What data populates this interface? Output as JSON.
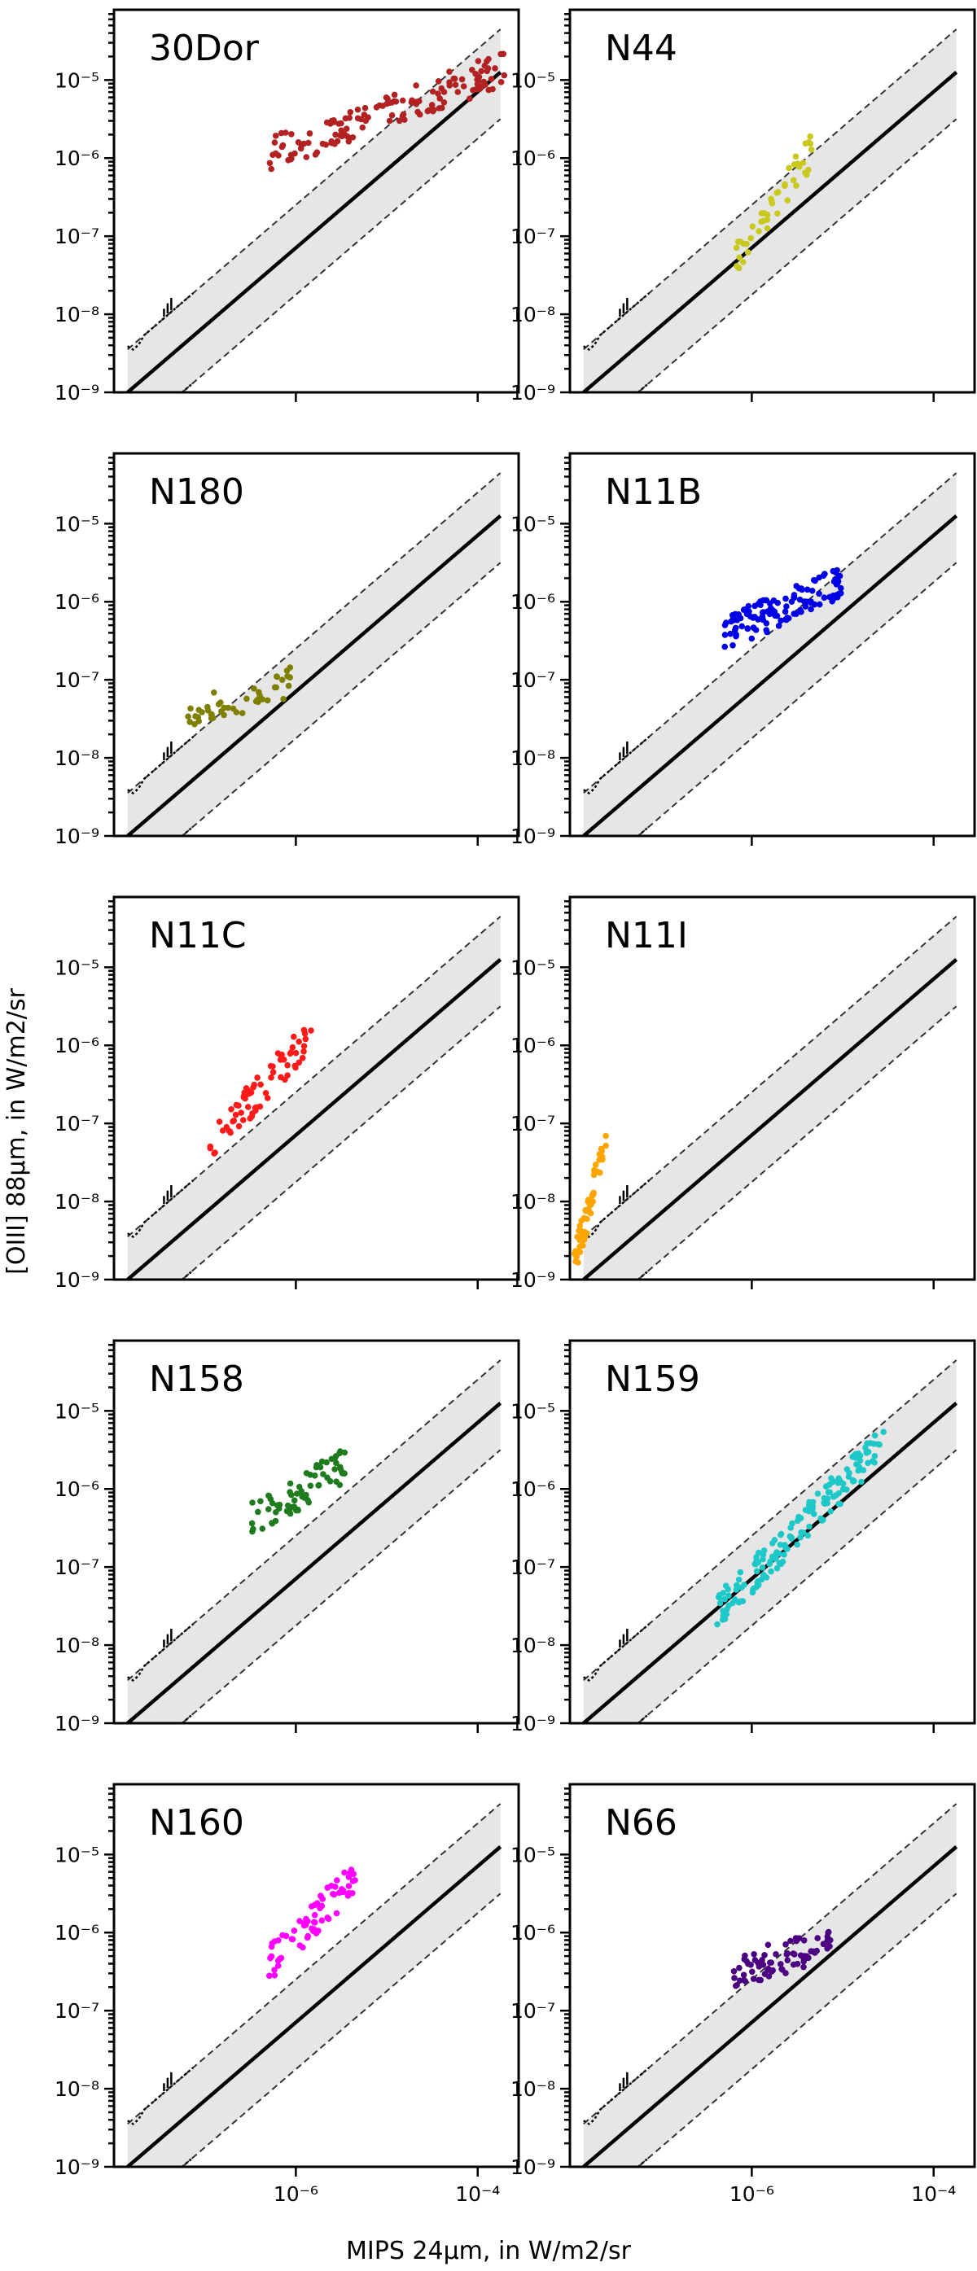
{
  "figure": {
    "xlabel": "MIPS 24μm, in W/m2/sr",
    "ylabel": "[OIII] 88μm, in W/m2/sr",
    "y_tick_labels": [
      "10⁻⁹",
      "10⁻⁸",
      "10⁻⁷",
      "10⁻⁶",
      "10⁻⁵"
    ],
    "x_tick_labels": [
      "10⁻⁶",
      "10⁻⁴"
    ]
  },
  "chart_data": [
    {
      "type": "scatter",
      "title": "30Dor",
      "color": "#b22222",
      "x_log_range": [
        -6.3,
        -3.7
      ],
      "y_log_range": [
        -5.95,
        -4.85
      ],
      "xlim": [
        1e-08,
        0.0003
      ],
      "ylim": [
        1e-09,
        8e-05
      ],
      "xscale": "log",
      "yscale": "log",
      "fit": "y = 0.07·x (approx.)",
      "n_points": 140
    },
    {
      "type": "scatter",
      "title": "N44",
      "color": "#c8c81e",
      "x_log_range": [
        -6.2,
        -5.3
      ],
      "y_log_range": [
        -7.3,
        -5.85
      ],
      "xlim": [
        1e-08,
        0.0003
      ],
      "ylim": [
        1e-09,
        8e-05
      ],
      "xscale": "log",
      "yscale": "log",
      "n_points": 45
    },
    {
      "type": "scatter",
      "title": "N180",
      "color": "#808000",
      "x_log_range": [
        -7.2,
        -6.05
      ],
      "y_log_range": [
        -7.5,
        -7.0
      ],
      "xlim": [
        1e-08,
        0.0003
      ],
      "ylim": [
        1e-09,
        8e-05
      ],
      "xscale": "log",
      "yscale": "log",
      "n_points": 45
    },
    {
      "type": "scatter",
      "title": "N11B",
      "color": "#0000e6",
      "x_log_range": [
        -6.3,
        -5.0
      ],
      "y_log_range": [
        -6.4,
        -5.75
      ],
      "xlim": [
        1e-08,
        0.0003
      ],
      "ylim": [
        1e-09,
        8e-05
      ],
      "xscale": "log",
      "yscale": "log",
      "n_points": 120
    },
    {
      "type": "scatter",
      "title": "N11C",
      "color": "#ff1a1a",
      "x_log_range": [
        -6.95,
        -5.8
      ],
      "y_log_range": [
        -7.3,
        -5.8
      ],
      "xlim": [
        1e-08,
        0.0003
      ],
      "ylim": [
        1e-09,
        8e-05
      ],
      "xscale": "log",
      "yscale": "log",
      "n_points": 70
    },
    {
      "type": "scatter",
      "title": "N11I",
      "color": "#ffa500",
      "x_log_range": [
        -7.95,
        -7.6
      ],
      "y_log_range": [
        -8.8,
        -7.2
      ],
      "xlim": [
        1e-08,
        0.0003
      ],
      "ylim": [
        1e-09,
        8e-05
      ],
      "xscale": "log",
      "yscale": "log",
      "n_points": 55
    },
    {
      "type": "scatter",
      "title": "N158",
      "color": "#1e7b1e",
      "x_log_range": [
        -6.5,
        -5.45
      ],
      "y_log_range": [
        -6.4,
        -5.7
      ],
      "xlim": [
        1e-08,
        0.0003
      ],
      "ylim": [
        1e-09,
        8e-05
      ],
      "xscale": "log",
      "yscale": "log",
      "n_points": 70
    },
    {
      "type": "scatter",
      "title": "N159",
      "color": "#1ec8c8",
      "x_log_range": [
        -6.4,
        -4.55
      ],
      "y_log_range": [
        -7.6,
        -5.4
      ],
      "xlim": [
        1e-08,
        0.0003
      ],
      "ylim": [
        1e-09,
        8e-05
      ],
      "xscale": "log",
      "yscale": "log",
      "n_points": 160
    },
    {
      "type": "scatter",
      "title": "N160",
      "color": "#ff00ff",
      "x_log_range": [
        -6.3,
        -5.35
      ],
      "y_log_range": [
        -6.4,
        -5.3
      ],
      "xlim": [
        1e-08,
        0.0003
      ],
      "ylim": [
        1e-09,
        8e-05
      ],
      "xscale": "log",
      "yscale": "log",
      "n_points": 70
    },
    {
      "type": "scatter",
      "title": "N66",
      "color": "#4b0082",
      "x_log_range": [
        -6.2,
        -5.1
      ],
      "y_log_range": [
        -6.5,
        -6.15
      ],
      "xlim": [
        1e-08,
        0.0003
      ],
      "ylim": [
        1e-09,
        8e-05
      ],
      "xscale": "log",
      "yscale": "log",
      "n_points": 75
    }
  ]
}
